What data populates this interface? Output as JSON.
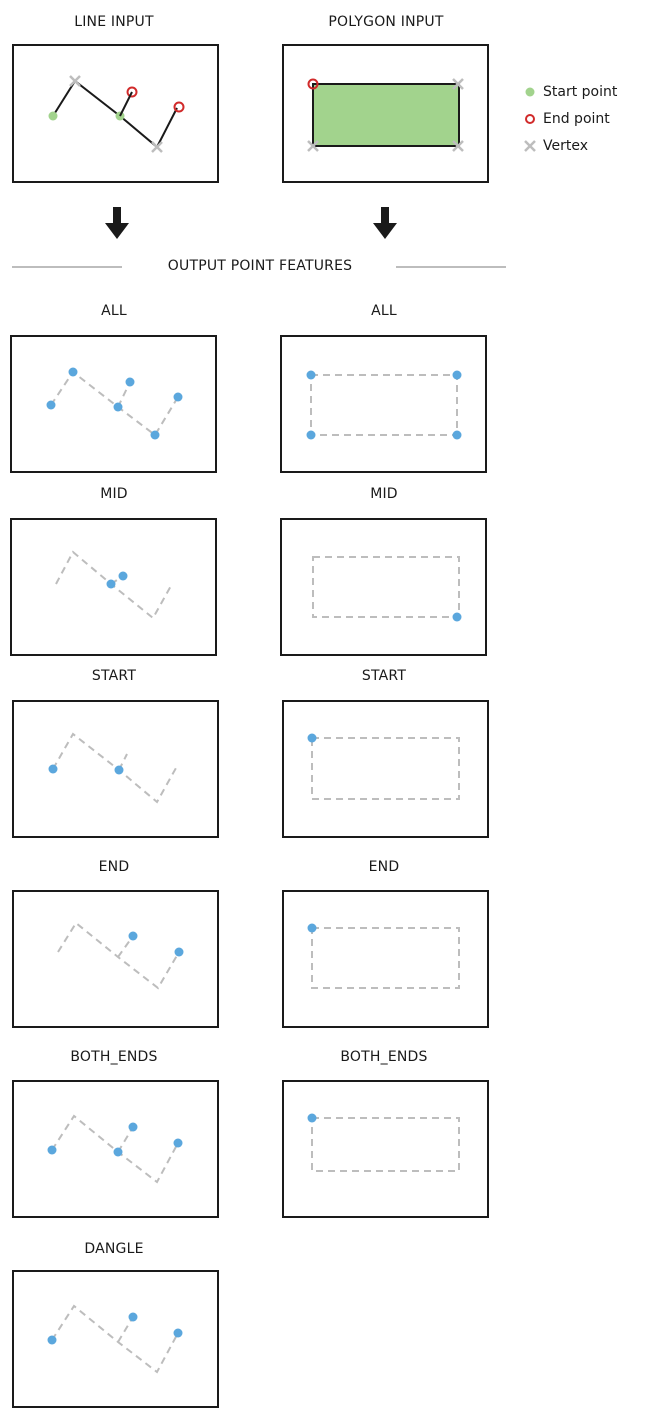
{
  "input": {
    "line_title": "LINE INPUT",
    "polygon_title": "POLYGON INPUT"
  },
  "legend": {
    "start": "Start point",
    "end": "End point",
    "vertex": "Vertex"
  },
  "section_title": "OUTPUT POINT FEATURES",
  "outputs": [
    {
      "left": "ALL",
      "right": "ALL"
    },
    {
      "left": "MID",
      "right": "MID"
    },
    {
      "left": "START",
      "right": "START"
    },
    {
      "left": "END",
      "right": "END"
    },
    {
      "left": "BOTH_ENDS",
      "right": "BOTH_ENDS"
    },
    {
      "left": "DANGLE",
      "right": ""
    }
  ],
  "colors": {
    "start_point": "#a2d38d",
    "end_point": "#d12a2a",
    "vertex": "#bdbdbd",
    "output_point": "#5ba7dd",
    "dashed_line": "#bdbdbd",
    "polygon_fill": "#a2d38d"
  }
}
